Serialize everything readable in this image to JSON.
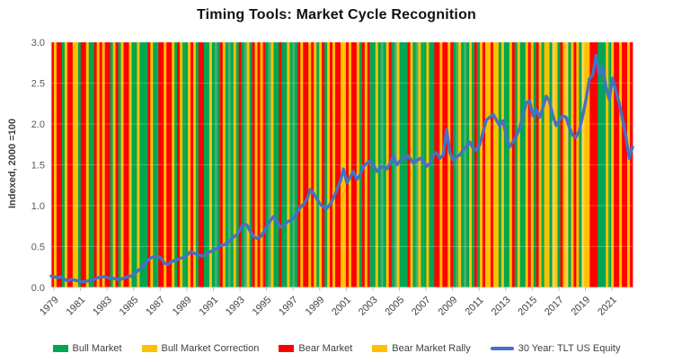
{
  "title": "Timing Tools: Market Cycle Recognition",
  "colors": {
    "bull": "#00A651",
    "bull_light": "#44B26E",
    "correction": "#FFC000",
    "correction_light": "#FFD04D",
    "bear": "#FF0000",
    "bear_rally": "#FFC000",
    "line": "#4472C4",
    "axis": "#D9D9D9",
    "tick": "#BFBFBF",
    "tick_text": "#595959",
    "label_text": "#404040"
  },
  "chart_data": {
    "type": "line",
    "title": "Timing Tools: Market Cycle Recognition",
    "xlabel": "",
    "ylabel": "Indexed, 2000 =100",
    "ylim": [
      0.0,
      3.0
    ],
    "yticks": [
      "0.0",
      "0.5",
      "1.0",
      "1.5",
      "2.0",
      "2.5",
      "3.0"
    ],
    "xticks": [
      "1979",
      "1981",
      "1983",
      "1985",
      "1987",
      "1989",
      "1991",
      "1993",
      "1995",
      "1997",
      "1999",
      "2001",
      "2003",
      "2005",
      "2007",
      "2009",
      "2011",
      "2013",
      "2015",
      "2017",
      "2019",
      "2021"
    ],
    "x_range": [
      1979.0,
      2022.75
    ],
    "grid": "faint horizontal majors over full-height regime stripes",
    "legend_position": "bottom",
    "series": [
      {
        "name": "30 Year: TLT US Equity",
        "color": "#4472C4",
        "x_start": 1979.0,
        "x_step": 0.25,
        "values": [
          0.14,
          0.13,
          0.12,
          0.13,
          0.1,
          0.08,
          0.1,
          0.09,
          0.08,
          0.07,
          0.07,
          0.08,
          0.09,
          0.1,
          0.12,
          0.13,
          0.13,
          0.12,
          0.11,
          0.11,
          0.1,
          0.1,
          0.12,
          0.13,
          0.14,
          0.16,
          0.2,
          0.24,
          0.28,
          0.33,
          0.36,
          0.38,
          0.38,
          0.36,
          0.3,
          0.28,
          0.31,
          0.33,
          0.34,
          0.36,
          0.36,
          0.4,
          0.44,
          0.42,
          0.4,
          0.39,
          0.38,
          0.42,
          0.44,
          0.46,
          0.48,
          0.52,
          0.52,
          0.55,
          0.58,
          0.62,
          0.65,
          0.72,
          0.78,
          0.76,
          0.68,
          0.62,
          0.6,
          0.62,
          0.68,
          0.76,
          0.82,
          0.87,
          0.8,
          0.74,
          0.76,
          0.8,
          0.82,
          0.85,
          0.92,
          0.98,
          1.02,
          1.08,
          1.2,
          1.15,
          1.08,
          1.02,
          0.98,
          0.97,
          1.02,
          1.1,
          1.2,
          1.3,
          1.45,
          1.28,
          1.35,
          1.42,
          1.32,
          1.38,
          1.48,
          1.52,
          1.55,
          1.5,
          1.42,
          1.46,
          1.48,
          1.45,
          1.52,
          1.61,
          1.5,
          1.55,
          1.58,
          1.62,
          1.58,
          1.52,
          1.55,
          1.58,
          1.55,
          1.48,
          1.52,
          1.62,
          1.65,
          1.58,
          1.62,
          1.93,
          1.65,
          1.55,
          1.6,
          1.62,
          1.68,
          1.72,
          1.78,
          1.7,
          1.68,
          1.75,
          1.9,
          2.05,
          2.08,
          2.12,
          2.05,
          1.98,
          2.04,
          1.85,
          1.72,
          1.78,
          1.85,
          1.95,
          2.1,
          2.26,
          2.28,
          2.1,
          2.18,
          2.08,
          2.2,
          2.34,
          2.28,
          2.1,
          1.98,
          2.05,
          2.1,
          2.08,
          1.95,
          1.86,
          1.84,
          1.92,
          2.1,
          2.3,
          2.55,
          2.6,
          2.84,
          2.6,
          2.7,
          2.45,
          2.3,
          2.56,
          2.4,
          2.25,
          2.05,
          1.85,
          1.58,
          1.72
        ]
      }
    ],
    "regime_stripes": {
      "description": "full-height background stripes left-to-right across 1979-2022; G=Bull Market (green), Y=Bull Market Correction / Bear Market Rally (gold), R=Bear Market (red); lowercase = lighter shade",
      "pattern": "RYRRGYRRYYGRRYGGRYRYRRGYRGYRRYGGYGGGRYGGRRYRRYGRYGGYRYGRRGGYGgGRYGgGYGRGgYGRYRYRGgYGGRGGYGgGRYRRYRYGYRGYRYRRYYRYRRYGRYRGGYGgGYRGgYGGGRYGgYGGYGGRRYRRYRGgYGgGYGRGYRYYRYYGYGGYRGYGGYRYGRYGYYGyYGRYyGYRYGyYYRRRGGGYGYRRYRRYR"
    },
    "legend": [
      {
        "label": "Bull Market",
        "color": "#00A651",
        "type": "box"
      },
      {
        "label": "Bull Market Correction",
        "color": "#FFC000",
        "type": "box"
      },
      {
        "label": "Bear Market",
        "color": "#FF0000",
        "type": "box"
      },
      {
        "label": "Bear Market Rally",
        "color": "#FFC000",
        "type": "box"
      },
      {
        "label": "30 Year: TLT US Equity",
        "color": "#4472C4",
        "type": "line"
      }
    ]
  }
}
